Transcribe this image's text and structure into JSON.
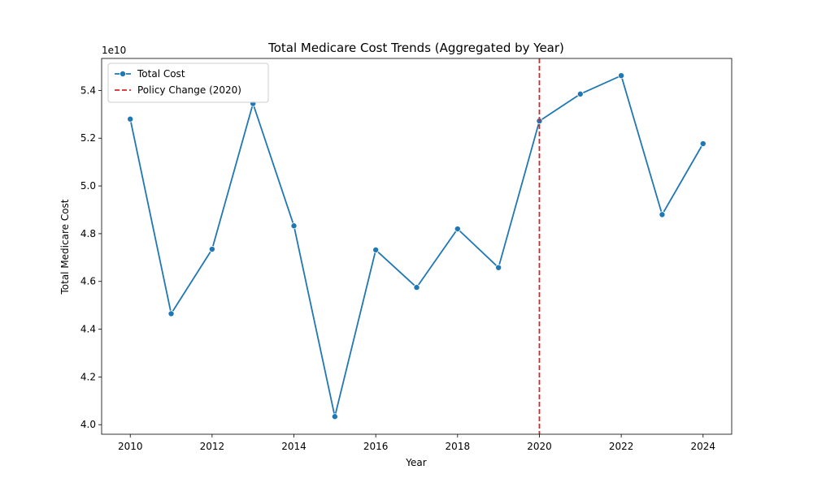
{
  "chart_data": {
    "type": "line",
    "title": "Total Medicare Cost Trends (Aggregated by Year)",
    "xlabel": "Year",
    "ylabel": "Total Medicare Cost",
    "y_offset_label": "1e10",
    "y_scale_exponent": 10,
    "xlim": [
      2009.3,
      2024.7
    ],
    "ylim": [
      3.96,
      5.534
    ],
    "xticks": [
      2010,
      2012,
      2014,
      2016,
      2018,
      2020,
      2022,
      2024
    ],
    "xtick_labels": [
      "2010",
      "2012",
      "2014",
      "2016",
      "2018",
      "2020",
      "2022",
      "2024"
    ],
    "yticks": [
      4.0,
      4.2,
      4.4,
      4.6,
      4.8,
      5.0,
      5.2,
      5.4
    ],
    "ytick_labels": [
      "4.0",
      "4.2",
      "4.4",
      "4.6",
      "4.8",
      "5.0",
      "5.2",
      "5.4"
    ],
    "grid": false,
    "legend_position": "upper-left",
    "series": [
      {
        "name": "Total Cost",
        "color": "#1f77b4",
        "marker": "circle",
        "x": [
          2010,
          2011,
          2012,
          2013,
          2014,
          2015,
          2016,
          2017,
          2018,
          2019,
          2020,
          2021,
          2022,
          2023,
          2024
        ],
        "y": [
          5.28,
          4.465,
          4.735,
          5.345,
          4.833,
          4.034,
          4.732,
          4.575,
          4.82,
          4.658,
          5.272,
          5.385,
          5.462,
          4.88,
          5.177
        ]
      }
    ],
    "vlines": [
      {
        "name": "Policy Change (2020)",
        "x": 2020,
        "color": "#d62728",
        "style": "dashed"
      }
    ]
  }
}
